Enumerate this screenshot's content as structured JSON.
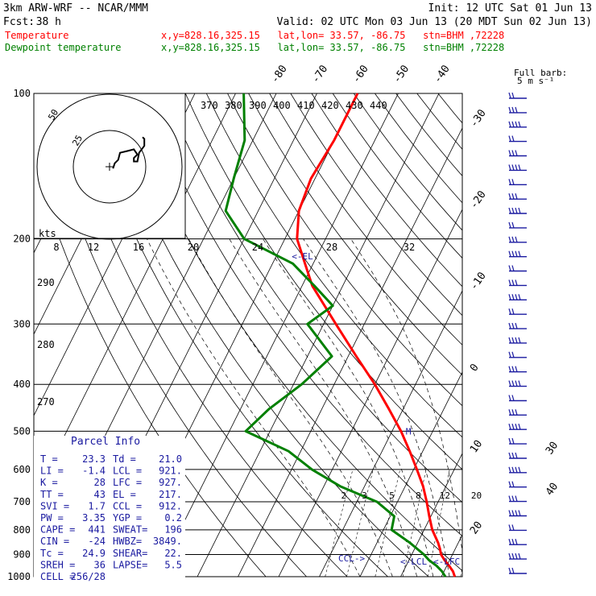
{
  "header": {
    "model": "3km ARW-WRF -- NCAR/MMM",
    "fcst_label": "Fcst:",
    "fcst_hours": "38 h",
    "init": "Init: 12 UTC Sat 01 Jun 13",
    "valid": "Valid: 02 UTC Mon 03 Jun 13 (20 MDT Sun 02 Jun 13)"
  },
  "legend": {
    "temperature": {
      "name": "Temperature",
      "info": "x,y=828.16,325.15   lat,lon= 33.57, -86.75   stn=BHM ,72228",
      "color": "#ff0000"
    },
    "dewpoint": {
      "name": "Dewpoint temperature",
      "info": "x,y=828.16,325.15   lat,lon= 33.57, -86.75   stn=BHM ,72228",
      "color": "#008000"
    }
  },
  "barb_legend": {
    "line1": "Full barb:",
    "line2": "5 m s⁻¹"
  },
  "hodograph": {
    "units": "kts",
    "rings": [
      "25",
      "50"
    ],
    "speed_ticks": [
      "8",
      "12",
      "16",
      "20",
      "24",
      "28",
      "32"
    ]
  },
  "chart_data": {
    "type": "line",
    "title": "",
    "pressure_axis": {
      "scale": "log",
      "ticks": [
        100,
        200,
        300,
        400,
        500,
        600,
        700,
        800,
        900,
        1000
      ]
    },
    "isotherm_labels": [
      -80,
      -70,
      -60,
      -50,
      -40,
      -30,
      -20,
      -10,
      0,
      10,
      20,
      30,
      40
    ],
    "dry_adiabat_labels": [
      370,
      380,
      390,
      400,
      410,
      420,
      430,
      440
    ],
    "theta_left_labels": [
      290,
      280,
      270
    ],
    "mixing_ratio_labels": [
      2,
      3,
      5,
      8,
      12,
      20
    ],
    "markers": {
      "lcl_upper": "<-EL",
      "mark": "M",
      "lcl": "CCL->",
      "lcl_label": "<-LCL",
      "lfc_label": "<-LFC"
    },
    "series": [
      {
        "name": "Temperature",
        "color": "#ff0000",
        "points": [
          [
            1000,
            23.3
          ],
          [
            975,
            22.2
          ],
          [
            950,
            20.6
          ],
          [
            925,
            18.8
          ],
          [
            900,
            17.2
          ],
          [
            875,
            16.2
          ],
          [
            850,
            15.0
          ],
          [
            800,
            12.0
          ],
          [
            750,
            9.6
          ],
          [
            700,
            7.2
          ],
          [
            650,
            4.4
          ],
          [
            600,
            0.8
          ],
          [
            550,
            -3.2
          ],
          [
            500,
            -7.8
          ],
          [
            450,
            -13.5
          ],
          [
            400,
            -20.0
          ],
          [
            350,
            -28.0
          ],
          [
            300,
            -37.0
          ],
          [
            250,
            -47.5
          ],
          [
            225,
            -52.0
          ],
          [
            200,
            -57.0
          ],
          [
            175,
            -60.0
          ],
          [
            150,
            -61.0
          ],
          [
            125,
            -60.0
          ],
          [
            100,
            -60.0
          ]
        ]
      },
      {
        "name": "Dewpoint temperature",
        "color": "#008000",
        "points": [
          [
            1000,
            21.0
          ],
          [
            975,
            19.5
          ],
          [
            950,
            17.5
          ],
          [
            925,
            15.0
          ],
          [
            900,
            13.0
          ],
          [
            850,
            8.0
          ],
          [
            800,
            2.0
          ],
          [
            750,
            1.0
          ],
          [
            700,
            -5.0
          ],
          [
            650,
            -16.0
          ],
          [
            600,
            -25.0
          ],
          [
            550,
            -33.0
          ],
          [
            500,
            -46.0
          ],
          [
            450,
            -43.0
          ],
          [
            400,
            -38.0
          ],
          [
            350,
            -34.0
          ],
          [
            300,
            -44.0
          ],
          [
            275,
            -40.0
          ],
          [
            250,
            -47.0
          ],
          [
            225,
            -55.0
          ],
          [
            200,
            -70.0
          ],
          [
            175,
            -78.0
          ],
          [
            150,
            -80.0
          ],
          [
            125,
            -82.0
          ],
          [
            100,
            -88.0
          ]
        ]
      }
    ],
    "hodograph_trace_kts": [
      [
        2,
        -1
      ],
      [
        3,
        2
      ],
      [
        5,
        4
      ],
      [
        6,
        8
      ],
      [
        10,
        9
      ],
      [
        14,
        10
      ],
      [
        16,
        7
      ],
      [
        14,
        5
      ],
      [
        14,
        3
      ],
      [
        16,
        3
      ],
      [
        17,
        8
      ],
      [
        20,
        12
      ],
      [
        20,
        16
      ],
      [
        19,
        17
      ]
    ],
    "wind_barbs": {
      "count": 34
    }
  },
  "parcel_info": {
    "title": "Parcel Info",
    "rows": [
      [
        "T  =",
        "23.3",
        "Td =",
        "21.0"
      ],
      [
        "LI =",
        "-1.4",
        "LCL =",
        "921."
      ],
      [
        "K  =",
        "28",
        "LFC =",
        "927."
      ],
      [
        "TT =",
        "43",
        "EL =",
        "217."
      ],
      [
        "SVI =",
        "1.7",
        "CCL =",
        "912."
      ],
      [
        "PW =",
        "3.35",
        "YGP =",
        "0.2"
      ],
      [
        "CAPE =",
        "441",
        "SWEAT=",
        "196"
      ],
      [
        "CIN =",
        "-24",
        "HWBZ=",
        "3849."
      ],
      [
        "Tc =",
        "24.9",
        "SHEAR=",
        "22."
      ],
      [
        "SREH =",
        "36",
        "LAPSE=",
        "5.5"
      ],
      [
        "CELL =",
        "256/28",
        "",
        ""
      ]
    ]
  }
}
